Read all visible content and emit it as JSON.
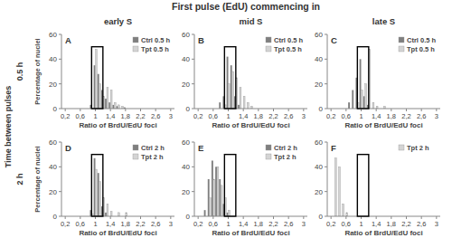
{
  "title": "First pulse (EdU) commencing in",
  "columns": [
    "early S",
    "mid S",
    "late S"
  ],
  "row_title": "Time between pulses",
  "rows": [
    "0.5 h",
    "2 h"
  ],
  "chart_data": [
    {
      "type": "bar",
      "title": "A",
      "x_label": "Ratio of BrdU/EdU foci",
      "y_label": "Percentage of nuclei",
      "x": [
        0.2,
        0.3,
        0.4,
        0.5,
        0.6,
        0.7,
        0.8,
        0.9,
        1.0,
        1.1,
        1.2,
        1.3,
        1.4,
        1.5,
        1.6,
        1.7,
        1.8,
        1.9,
        2.0
      ],
      "series": [
        {
          "name": "Ctrl 0.5 h",
          "color": "#7f7f7f",
          "values": [
            0,
            0,
            0,
            0,
            0,
            0,
            0,
            3,
            35,
            28,
            15,
            8,
            5,
            3,
            2,
            0,
            1,
            0,
            0
          ]
        },
        {
          "name": "Tpt 0.5 h",
          "color": "#d4d4d4",
          "values": [
            0,
            0,
            0,
            0,
            0,
            0,
            0,
            0,
            48,
            20,
            10,
            17,
            15,
            5,
            3,
            2,
            0,
            0,
            0
          ]
        }
      ],
      "xlim": [
        0.1,
        3.1
      ],
      "xticks": [
        {
          "value": 0.2,
          "label": "0,2"
        },
        {
          "value": 0.6,
          "label": "0,6"
        },
        1,
        {
          "value": 1.4,
          "label": "1,4"
        },
        {
          "value": 1.8,
          "label": "1,8"
        },
        {
          "value": 2.2,
          "label": "2,2"
        },
        {
          "value": 2.6,
          "label": "2,6"
        },
        3
      ],
      "ylim": [
        0,
        60
      ],
      "yticks": [
        0,
        20,
        40,
        60
      ],
      "legend": "top-right",
      "highlight": {
        "x": [
          0.9,
          1.2
        ],
        "y": [
          0,
          50
        ]
      }
    },
    {
      "type": "bar",
      "title": "B",
      "x_label": "Ratio of BrdU/EdU foci",
      "x": [
        0.2,
        0.3,
        0.4,
        0.5,
        0.6,
        0.7,
        0.8,
        0.9,
        1.0,
        1.1,
        1.2,
        1.3,
        1.4,
        1.5,
        1.6,
        1.7,
        1.8,
        1.9,
        2.0
      ],
      "series": [
        {
          "name": "Ctrl 0.5 h",
          "color": "#7f7f7f",
          "values": [
            0,
            0,
            0,
            0,
            0,
            0,
            5,
            10,
            42,
            35,
            10,
            3,
            0,
            0,
            0,
            0,
            0,
            0,
            0
          ]
        },
        {
          "name": "Tpt 0.5 h",
          "color": "#d4d4d4",
          "values": [
            0,
            0,
            0,
            0,
            0,
            0,
            0,
            3,
            20,
            30,
            25,
            17,
            10,
            5,
            2,
            0,
            0,
            0,
            0
          ]
        }
      ],
      "xlim": [
        0.1,
        3.1
      ],
      "xticks": [
        {
          "value": 0.2,
          "label": "0,2"
        },
        {
          "value": 0.6,
          "label": "0,6"
        },
        1,
        {
          "value": 1.4,
          "label": "1,4"
        },
        {
          "value": 1.8,
          "label": "1,8"
        },
        {
          "value": 2.2,
          "label": "2,2"
        },
        {
          "value": 2.6,
          "label": "2,6"
        },
        3
      ],
      "ylim": [
        0,
        60
      ],
      "yticks": [
        0,
        20,
        40,
        60
      ],
      "legend": "top-right",
      "highlight": {
        "x": [
          0.9,
          1.2
        ],
        "y": [
          0,
          50
        ]
      }
    },
    {
      "type": "bar",
      "title": "C",
      "x_label": "Ratio of BrdU/EdU foci",
      "x": [
        0.2,
        0.3,
        0.4,
        0.5,
        0.6,
        0.7,
        0.8,
        0.9,
        1.0,
        1.1,
        1.2,
        1.3,
        1.4,
        1.5,
        1.6,
        1.7,
        1.8,
        1.9,
        2.0
      ],
      "series": [
        {
          "name": "Ctrl 0.5 h",
          "color": "#7f7f7f",
          "values": [
            0,
            0,
            0,
            0,
            0,
            5,
            15,
            25,
            40,
            10,
            3,
            0,
            0,
            0,
            0,
            0,
            0,
            0,
            0
          ]
        },
        {
          "name": "Tpt 0.5 h",
          "color": "#d4d4d4",
          "values": [
            0,
            0,
            0,
            0,
            0,
            0,
            0,
            5,
            15,
            20,
            48,
            5,
            2,
            0,
            2,
            0,
            0,
            0,
            0
          ]
        }
      ],
      "xlim": [
        0.1,
        3.1
      ],
      "xticks": [
        {
          "value": 0.2,
          "label": "0,2"
        },
        {
          "value": 0.6,
          "label": "0,6"
        },
        1,
        {
          "value": 1.4,
          "label": "1,4"
        },
        {
          "value": 1.8,
          "label": "1,8"
        },
        {
          "value": 2.2,
          "label": "2,2"
        },
        {
          "value": 2.6,
          "label": "2,6"
        },
        3
      ],
      "ylim": [
        0,
        60
      ],
      "yticks": [
        0,
        20,
        40,
        60
      ],
      "legend": "top-right",
      "highlight": {
        "x": [
          0.9,
          1.2
        ],
        "y": [
          0,
          50
        ]
      }
    },
    {
      "type": "bar",
      "title": "D",
      "x_label": "Ratio of BrdU/EdU foci",
      "y_label": "Percentage of nuclei",
      "x": [
        0.2,
        0.3,
        0.4,
        0.5,
        0.6,
        0.7,
        0.8,
        0.9,
        1.0,
        1.1,
        1.2,
        1.3,
        1.4,
        1.5,
        1.6,
        1.7,
        1.8,
        1.9,
        2.0
      ],
      "series": [
        {
          "name": "Ctrl 2 h",
          "color": "#7f7f7f",
          "values": [
            0,
            0,
            0,
            0,
            0,
            0,
            0,
            5,
            47,
            35,
            8,
            3,
            0,
            0,
            0,
            0,
            0,
            0,
            0
          ]
        },
        {
          "name": "Tpt 2 h",
          "color": "#d4d4d4",
          "values": [
            0,
            0,
            0,
            0,
            0,
            0,
            0,
            2,
            38,
            28,
            15,
            10,
            4,
            0,
            3,
            0,
            3,
            0,
            0
          ]
        }
      ],
      "xlim": [
        0.1,
        3.1
      ],
      "xticks": [
        {
          "value": 0.2,
          "label": "0,2"
        },
        {
          "value": 0.6,
          "label": "0,6"
        },
        1,
        {
          "value": 1.4,
          "label": "1,4"
        },
        {
          "value": 1.8,
          "label": "1,8"
        },
        {
          "value": 2.2,
          "label": "2,2"
        },
        {
          "value": 2.6,
          "label": "2,6"
        },
        3
      ],
      "ylim": [
        0,
        60
      ],
      "yticks": [
        0,
        20,
        40,
        60
      ],
      "legend": "top-right",
      "highlight": {
        "x": [
          0.9,
          1.2
        ],
        "y": [
          0,
          50
        ]
      }
    },
    {
      "type": "bar",
      "title": "E",
      "x_label": "Ratio of BrdU/EdU foci",
      "x": [
        0.2,
        0.3,
        0.4,
        0.5,
        0.6,
        0.7,
        0.8,
        0.9,
        1.0,
        1.1,
        1.2,
        1.3,
        1.4,
        1.5,
        1.6,
        1.7,
        1.8,
        1.9,
        2.0
      ],
      "series": [
        {
          "name": "Ctrl 2 h",
          "color": "#7f7f7f",
          "values": [
            0,
            0,
            5,
            30,
            45,
            40,
            30,
            10,
            3,
            0,
            0,
            0,
            0,
            0,
            0,
            0,
            0,
            0,
            0
          ]
        },
        {
          "name": "Tpt 2 h",
          "color": "#d4d4d4",
          "values": [
            0,
            0,
            0,
            15,
            30,
            40,
            25,
            15,
            5,
            0,
            0,
            0,
            0,
            0,
            0,
            0,
            0,
            0,
            0
          ]
        }
      ],
      "xlim": [
        0.1,
        3.1
      ],
      "xticks": [
        {
          "value": 0.2,
          "label": "0,2"
        },
        {
          "value": 0.6,
          "label": "0,6"
        },
        1,
        {
          "value": 1.4,
          "label": "1,4"
        },
        {
          "value": 1.8,
          "label": "1,8"
        },
        {
          "value": 2.2,
          "label": "2,2"
        },
        {
          "value": 2.6,
          "label": "2,6"
        },
        3
      ],
      "ylim": [
        0,
        60
      ],
      "yticks": [
        0,
        20,
        40,
        60
      ],
      "legend": "top-right",
      "highlight": {
        "x": [
          0.9,
          1.2
        ],
        "y": [
          0,
          50
        ]
      }
    },
    {
      "type": "bar",
      "title": "F",
      "x_label": "Ratio of BrdU/EdU foci",
      "x": [
        0.2,
        0.3,
        0.4,
        0.5,
        0.6,
        0.7,
        0.8,
        0.9,
        1.0,
        1.1,
        1.2,
        1.3,
        1.4,
        1.5,
        1.6,
        1.7,
        1.8,
        1.9,
        2.0
      ],
      "series": [
        {
          "name": "Tpt 2 h",
          "color": "#d4d4d4",
          "values": [
            0,
            47,
            40,
            10,
            3,
            0,
            0,
            0,
            0,
            0,
            0,
            0,
            0,
            0,
            0,
            0,
            0,
            0,
            0
          ]
        }
      ],
      "xlim": [
        0.1,
        3.1
      ],
      "xticks": [
        {
          "value": 0.2,
          "label": "0,2"
        },
        {
          "value": 0.6,
          "label": "0,6"
        },
        1,
        {
          "value": 1.4,
          "label": "1,4"
        },
        {
          "value": 1.8,
          "label": "1,8"
        },
        {
          "value": 2.2,
          "label": "2,2"
        },
        {
          "value": 2.6,
          "label": "2,6"
        },
        3
      ],
      "ylim": [
        0,
        60
      ],
      "yticks": [
        0,
        20,
        40,
        60
      ],
      "legend": "top-right",
      "highlight": {
        "x": [
          0.9,
          1.2
        ],
        "y": [
          0,
          50
        ]
      }
    }
  ]
}
